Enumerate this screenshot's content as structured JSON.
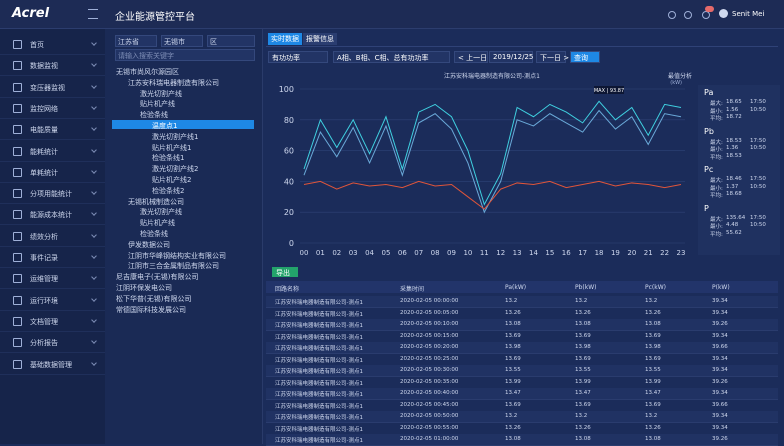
{
  "header": {
    "logo": "Acrel",
    "title": "企业能源管控平台",
    "user": "Senit Mei"
  },
  "menu": [
    "首页",
    "数据监视",
    "变压器监视",
    "监控网络",
    "电能质量",
    "能耗统计",
    "单耗统计",
    "分项用能统计",
    "能源成本统计",
    "绩效分析",
    "事件记录",
    "运维管理",
    "运行环境",
    "文档管理",
    "分析报告",
    "基础数据管理"
  ],
  "filters": {
    "province": "江苏省",
    "city": "无锡市",
    "district": "区",
    "search": "请输入搜索关键字"
  },
  "tree": [
    {
      "label": "无锡市尚风尔源园区",
      "children": [
        {
          "label": "江苏安科瑞电器制造有限公司",
          "children": [
            {
              "label": "激光切割产线"
            },
            {
              "label": "贴片机产线"
            },
            {
              "label": "检验条线",
              "children": [
                {
                  "label": "温度点1",
                  "selected": true
                },
                {
                  "label": "激光切割产线1"
                },
                {
                  "label": "贴片机产线1"
                },
                {
                  "label": "检验条线1"
                },
                {
                  "label": "激光切割产线2"
                },
                {
                  "label": "贴片机产线2"
                },
                {
                  "label": "检验条线2"
                }
              ]
            }
          ]
        },
        {
          "label": "无锡机械制造公司",
          "children": [
            {
              "label": "激光切割产线"
            },
            {
              "label": "贴片机产线"
            },
            {
              "label": "检验条线"
            }
          ]
        },
        {
          "label": "伊发数据公司"
        },
        {
          "label": "江阴市华峰钢结构实业有限公司"
        },
        {
          "label": "江阴市三合金属制品有限公司"
        }
      ]
    },
    {
      "label": "尼吉康电子(无锡)有限公司"
    },
    {
      "label": "江阴环保发电公司"
    },
    {
      "label": "松下华普(无锡)有限公司"
    },
    {
      "label": "常德国际科技发展公司"
    }
  ],
  "tabs": [
    "实时数据",
    "报警信息"
  ],
  "toolbar": {
    "metric": "有功功率",
    "phases": "A相、B相、C相、总有功功率",
    "prev": "< 上一日",
    "date": "2019/12/25",
    "next": "下一日 >",
    "query": "查询"
  },
  "chart_data": {
    "type": "line",
    "title": "江苏安科瑞电器制造有限公司-测点1",
    "y_label": "(kW)",
    "annotation": "MAX | 93.87",
    "option": "最值分析",
    "categories": [
      "00",
      "01",
      "02",
      "03",
      "04",
      "05",
      "06",
      "07",
      "08",
      "09",
      "10",
      "11",
      "12",
      "13",
      "14",
      "15",
      "16",
      "17",
      "18",
      "19",
      "20",
      "21",
      "22",
      "23"
    ],
    "series": [
      {
        "color": "#3fd0e0",
        "values": [
          48,
          80,
          62,
          80,
          58,
          82,
          48,
          85,
          90,
          82,
          60,
          25,
          45,
          88,
          82,
          90,
          85,
          78,
          92,
          80,
          88,
          70,
          90,
          88
        ]
      },
      {
        "color": "#6aa9d8",
        "values": [
          44,
          72,
          56,
          75,
          52,
          76,
          44,
          78,
          84,
          74,
          52,
          20,
          40,
          80,
          76,
          84,
          78,
          72,
          86,
          74,
          82,
          64,
          84,
          82
        ]
      },
      {
        "color": "#e0553a",
        "values": [
          38,
          40,
          35,
          39,
          37,
          38,
          36,
          40,
          37,
          38,
          30,
          22,
          35,
          39,
          38,
          40,
          36,
          38,
          40,
          37,
          39,
          38,
          36,
          38
        ]
      }
    ],
    "ylim": [
      0,
      100
    ],
    "yticks": [
      0,
      20,
      40,
      60,
      80,
      100
    ],
    "grid": true
  },
  "stats": [
    {
      "name": "Pa",
      "rows": [
        {
          "label": "最大:",
          "value": "18.65",
          "time": "17:50"
        },
        {
          "label": "最小:",
          "value": "1.56",
          "time": "10:50"
        },
        {
          "label": "平均:",
          "value": "18.72"
        }
      ]
    },
    {
      "name": "Pb",
      "rows": [
        {
          "label": "最大:",
          "value": "18.53",
          "time": "17:50"
        },
        {
          "label": "最小:",
          "value": "1.36",
          "time": "10:50"
        },
        {
          "label": "平均:",
          "value": "18.53"
        }
      ]
    },
    {
      "name": "Pc",
      "rows": [
        {
          "label": "最大:",
          "value": "18.46",
          "time": "17:50"
        },
        {
          "label": "最小:",
          "value": "1.37",
          "time": "10:50"
        },
        {
          "label": "平均:",
          "value": "18.68"
        }
      ]
    },
    {
      "name": "P",
      "rows": [
        {
          "label": "最大:",
          "value": "135.64",
          "time": "17:50"
        },
        {
          "label": "最小:",
          "value": "4.48",
          "time": "10:50"
        },
        {
          "label": "平均:",
          "value": "55.62"
        }
      ]
    }
  ],
  "table": {
    "export": "导出",
    "headers": [
      "回路名称",
      "采集时间",
      "Pa(kW)",
      "Pb(kW)",
      "Pc(kW)",
      "P(kW)"
    ],
    "rows": [
      [
        "江苏安科瑞电器制造有限公司-测点1",
        "2020-02-05 00:00:00",
        "13.2",
        "13.2",
        "13.2",
        "39.34"
      ],
      [
        "江苏安科瑞电器制造有限公司-测点1",
        "2020-02-05 00:05:00",
        "13.26",
        "13.26",
        "13.26",
        "39.34"
      ],
      [
        "江苏安科瑞电器制造有限公司-测点1",
        "2020-02-05 00:10:00",
        "13.08",
        "13.08",
        "13.08",
        "39.26"
      ],
      [
        "江苏安科瑞电器制造有限公司-测点1",
        "2020-02-05 00:15:00",
        "13.69",
        "13.69",
        "13.69",
        "39.34"
      ],
      [
        "江苏安科瑞电器制造有限公司-测点1",
        "2020-02-05 00:20:00",
        "13.98",
        "13.98",
        "13.98",
        "39.66"
      ],
      [
        "江苏安科瑞电器制造有限公司-测点1",
        "2020-02-05 00:25:00",
        "13.69",
        "13.69",
        "13.69",
        "39.34"
      ],
      [
        "江苏安科瑞电器制造有限公司-测点1",
        "2020-02-05 00:30:00",
        "13.55",
        "13.55",
        "13.55",
        "39.34"
      ],
      [
        "江苏安科瑞电器制造有限公司-测点1",
        "2020-02-05 00:35:00",
        "13.99",
        "13.99",
        "13.99",
        "39.26"
      ],
      [
        "江苏安科瑞电器制造有限公司-测点1",
        "2020-02-05 00:40:00",
        "13.47",
        "13.47",
        "13.47",
        "39.34"
      ],
      [
        "江苏安科瑞电器制造有限公司-测点1",
        "2020-02-05 00:45:00",
        "13.69",
        "13.69",
        "13.69",
        "39.66"
      ],
      [
        "江苏安科瑞电器制造有限公司-测点1",
        "2020-02-05 00:50:00",
        "13.2",
        "13.2",
        "13.2",
        "39.34"
      ],
      [
        "江苏安科瑞电器制造有限公司-测点1",
        "2020-02-05 00:55:00",
        "13.26",
        "13.26",
        "13.26",
        "39.34"
      ],
      [
        "江苏安科瑞电器制造有限公司-测点1",
        "2020-02-05 01:00:00",
        "13.08",
        "13.08",
        "13.08",
        "39.26"
      ]
    ]
  }
}
